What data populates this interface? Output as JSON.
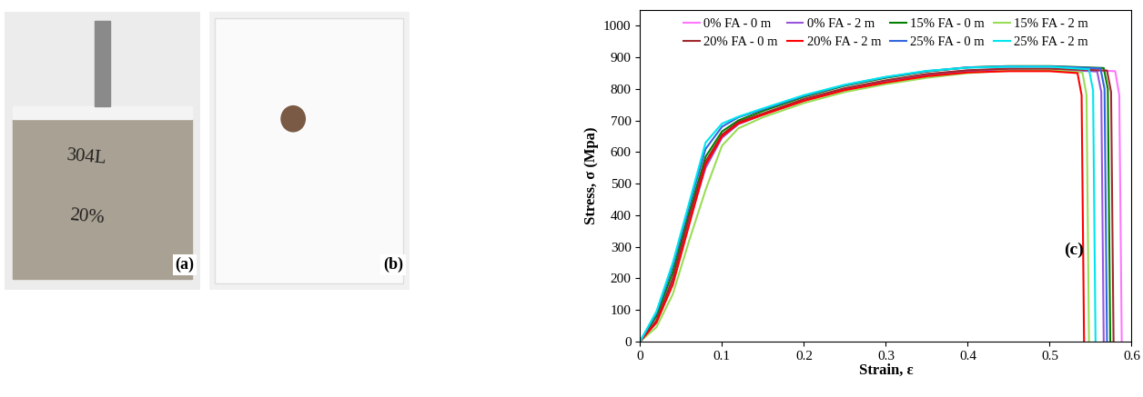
{
  "panels": [
    {
      "label": "(a)",
      "texts": [
        "304L",
        "20%"
      ]
    },
    {
      "label": "(b)"
    }
  ],
  "chart_data": {
    "type": "line",
    "annotation": "(c)",
    "x_label": "Strain, ε",
    "y_label": "Stress, σ (Mpa)",
    "xlim": [
      0,
      0.6
    ],
    "xticks": [
      0,
      0.1,
      0.2,
      0.3,
      0.4,
      0.5,
      0.6
    ],
    "ylim": [
      0,
      1050
    ],
    "yticks": [
      0,
      100,
      200,
      300,
      400,
      500,
      600,
      700,
      800,
      900,
      1000
    ],
    "grid": false,
    "legend": "upper center",
    "series": [
      {
        "name": "0% FA - 0 m",
        "color": "#ff77ff",
        "x": [
          0,
          0.02,
          0.04,
          0.06,
          0.08,
          0.1,
          0.12,
          0.15,
          0.2,
          0.25,
          0.3,
          0.35,
          0.4,
          0.45,
          0.5,
          0.58,
          0.585,
          0.588
        ],
        "values": [
          0,
          70,
          200,
          390,
          560,
          650,
          690,
          720,
          765,
          800,
          825,
          845,
          858,
          864,
          864,
          856,
          780,
          0
        ]
      },
      {
        "name": "0% FA - 2 m",
        "color": "#9955dd",
        "x": [
          0,
          0.02,
          0.04,
          0.06,
          0.08,
          0.1,
          0.12,
          0.15,
          0.2,
          0.25,
          0.3,
          0.35,
          0.4,
          0.45,
          0.5,
          0.558,
          0.563,
          0.566
        ],
        "values": [
          0,
          60,
          190,
          380,
          550,
          645,
          688,
          718,
          762,
          797,
          822,
          842,
          856,
          862,
          862,
          855,
          790,
          0
        ]
      },
      {
        "name": "15% FA - 0 m",
        "color": "#008000",
        "x": [
          0,
          0.02,
          0.04,
          0.06,
          0.08,
          0.1,
          0.12,
          0.15,
          0.2,
          0.25,
          0.3,
          0.35,
          0.4,
          0.45,
          0.5,
          0.566,
          0.571,
          0.574
        ],
        "values": [
          0,
          80,
          220,
          410,
          585,
          665,
          700,
          730,
          775,
          810,
          835,
          855,
          868,
          872,
          872,
          866,
          800,
          0
        ]
      },
      {
        "name": "15% FA - 2 m",
        "color": "#99dd55",
        "x": [
          0,
          0.02,
          0.04,
          0.06,
          0.08,
          0.1,
          0.12,
          0.15,
          0.2,
          0.25,
          0.3,
          0.35,
          0.4,
          0.45,
          0.5,
          0.54,
          0.545,
          0.548
        ],
        "values": [
          0,
          45,
          150,
          320,
          480,
          620,
          675,
          710,
          755,
          790,
          815,
          835,
          850,
          858,
          860,
          852,
          780,
          0
        ]
      },
      {
        "name": "20% FA - 0 m",
        "color": "#a0282d",
        "x": [
          0,
          0.02,
          0.04,
          0.06,
          0.08,
          0.1,
          0.12,
          0.15,
          0.2,
          0.25,
          0.3,
          0.35,
          0.4,
          0.45,
          0.5,
          0.57,
          0.575,
          0.578
        ],
        "values": [
          0,
          65,
          200,
          395,
          570,
          655,
          695,
          722,
          768,
          802,
          827,
          847,
          859,
          864,
          864,
          858,
          790,
          0
        ]
      },
      {
        "name": "20% FA - 2 m",
        "color": "#ff0000",
        "x": [
          0,
          0.02,
          0.04,
          0.06,
          0.08,
          0.1,
          0.12,
          0.15,
          0.2,
          0.25,
          0.3,
          0.35,
          0.4,
          0.45,
          0.5,
          0.534,
          0.539,
          0.542
        ],
        "values": [
          0,
          60,
          180,
          370,
          560,
          650,
          690,
          718,
          762,
          796,
          820,
          840,
          852,
          856,
          856,
          850,
          780,
          0
        ]
      },
      {
        "name": "25% FA - 0 m",
        "color": "#3366dd",
        "x": [
          0,
          0.02,
          0.04,
          0.06,
          0.08,
          0.1,
          0.12,
          0.15,
          0.2,
          0.25,
          0.3,
          0.35,
          0.4,
          0.45,
          0.5,
          0.562,
          0.567,
          0.57
        ],
        "values": [
          0,
          90,
          240,
          430,
          610,
          680,
          710,
          735,
          778,
          812,
          837,
          856,
          868,
          871,
          871,
          865,
          800,
          0
        ]
      },
      {
        "name": "25% FA - 2 m",
        "color": "#00e5ee",
        "x": [
          0,
          0.02,
          0.04,
          0.06,
          0.08,
          0.1,
          0.12,
          0.15,
          0.2,
          0.25,
          0.3,
          0.35,
          0.4,
          0.45,
          0.5,
          0.548,
          0.553,
          0.556
        ],
        "values": [
          0,
          95,
          250,
          440,
          630,
          690,
          712,
          738,
          780,
          813,
          838,
          857,
          867,
          870,
          870,
          862,
          795,
          0
        ]
      }
    ]
  }
}
